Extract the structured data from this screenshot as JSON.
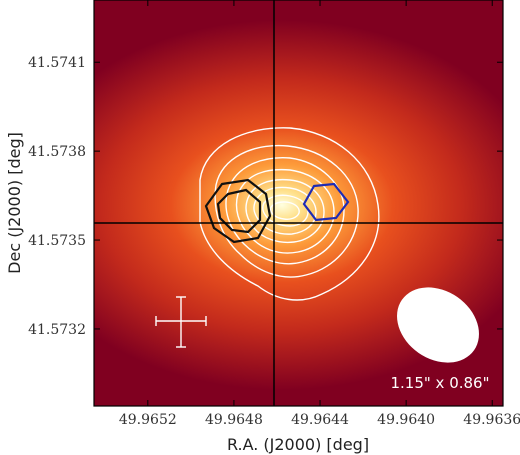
{
  "chart_data": {
    "type": "heatmap",
    "title": "",
    "xlabel": "R.A. (J2000) [deg]",
    "ylabel": "Dec (J2000) [deg]",
    "x_ticks": [
      "49.9652",
      "49.9648",
      "49.9644",
      "49.9640",
      "49.9636"
    ],
    "y_ticks": [
      "41.5741",
      "41.5738",
      "41.5735",
      "41.5732"
    ],
    "xlim": [
      49.96545,
      49.96355
    ],
    "ylim": [
      41.57294,
      41.57431
    ],
    "crosshair": {
      "ra": 49.96462,
      "dec": 41.57352
    },
    "peak": {
      "ra": 49.9646,
      "dec": 41.57357
    },
    "colormap": [
      "#ffffe0",
      "#ffe08a",
      "#fd9b3a",
      "#e8501e",
      "#c32a1c",
      "#800020"
    ],
    "beam_label": "1.15\" x 0.86\"",
    "beam_position": "bottom-right",
    "error_bar_position": "bottom-left",
    "contour_sets": [
      {
        "color": "#ffffff",
        "source": "white",
        "levels": 8
      },
      {
        "color": "#111111",
        "source": "black",
        "levels": 2
      },
      {
        "color": "#1e2bb4",
        "source": "blue",
        "levels": 1
      }
    ]
  }
}
